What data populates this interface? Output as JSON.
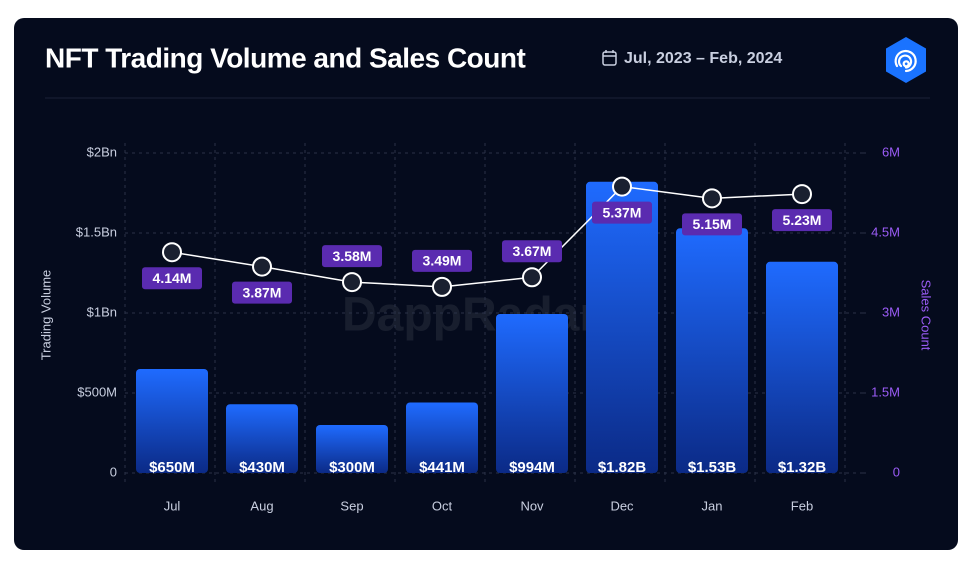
{
  "chart_data": {
    "type": "bar-line",
    "title": "NFT Trading Volume and Sales Count",
    "subtitle": "Jul, 2023 – Feb, 2024",
    "watermark": "DappRadar",
    "y_label": "Trading Volume",
    "y2_label": "Sales Count",
    "categories": [
      "Jul",
      "Aug",
      "Sep",
      "Oct",
      "Nov",
      "Dec",
      "Jan",
      "Feb"
    ],
    "ylim": [
      0,
      2000000000
    ],
    "yticks": [
      0,
      {
        "value": 500000000,
        "label": "$500M"
      },
      {
        "value": 1000000000,
        "label": "$1Bn"
      },
      {
        "value": 1500000000,
        "label": "$1.5Bn"
      },
      {
        "value": 2000000000,
        "label": "$2Bn"
      }
    ],
    "y2lim": [
      0,
      6000000
    ],
    "y2ticks": [
      0,
      {
        "value": 1500000,
        "label": "1.5M"
      },
      {
        "value": 3000000,
        "label": "3M"
      },
      {
        "value": 4500000,
        "label": "4.5M"
      },
      {
        "value": 6000000,
        "label": "6M"
      }
    ],
    "grid": true,
    "series": [
      {
        "name": "Trading Volume",
        "type": "bar",
        "color": "#1f6bff",
        "values": [
          650000000,
          430000000,
          300000000,
          441000000,
          994000000,
          1820000000,
          1530000000,
          1320000000
        ],
        "value_labels": [
          "$650M",
          "$430M",
          "$300M",
          "$441M",
          "$994M",
          "$1.82B",
          "$1.53B",
          "$1.32B"
        ]
      },
      {
        "name": "Sales Count",
        "type": "line",
        "axis": "y2",
        "color": "#ffffff",
        "values": [
          4140000,
          3870000,
          3580000,
          3490000,
          3670000,
          5370000,
          5150000,
          5230000
        ],
        "value_labels": [
          "4.14M",
          "3.87M",
          "3.58M",
          "3.49M",
          "3.67M",
          "5.37M",
          "5.15M",
          "5.23M"
        ]
      }
    ]
  }
}
